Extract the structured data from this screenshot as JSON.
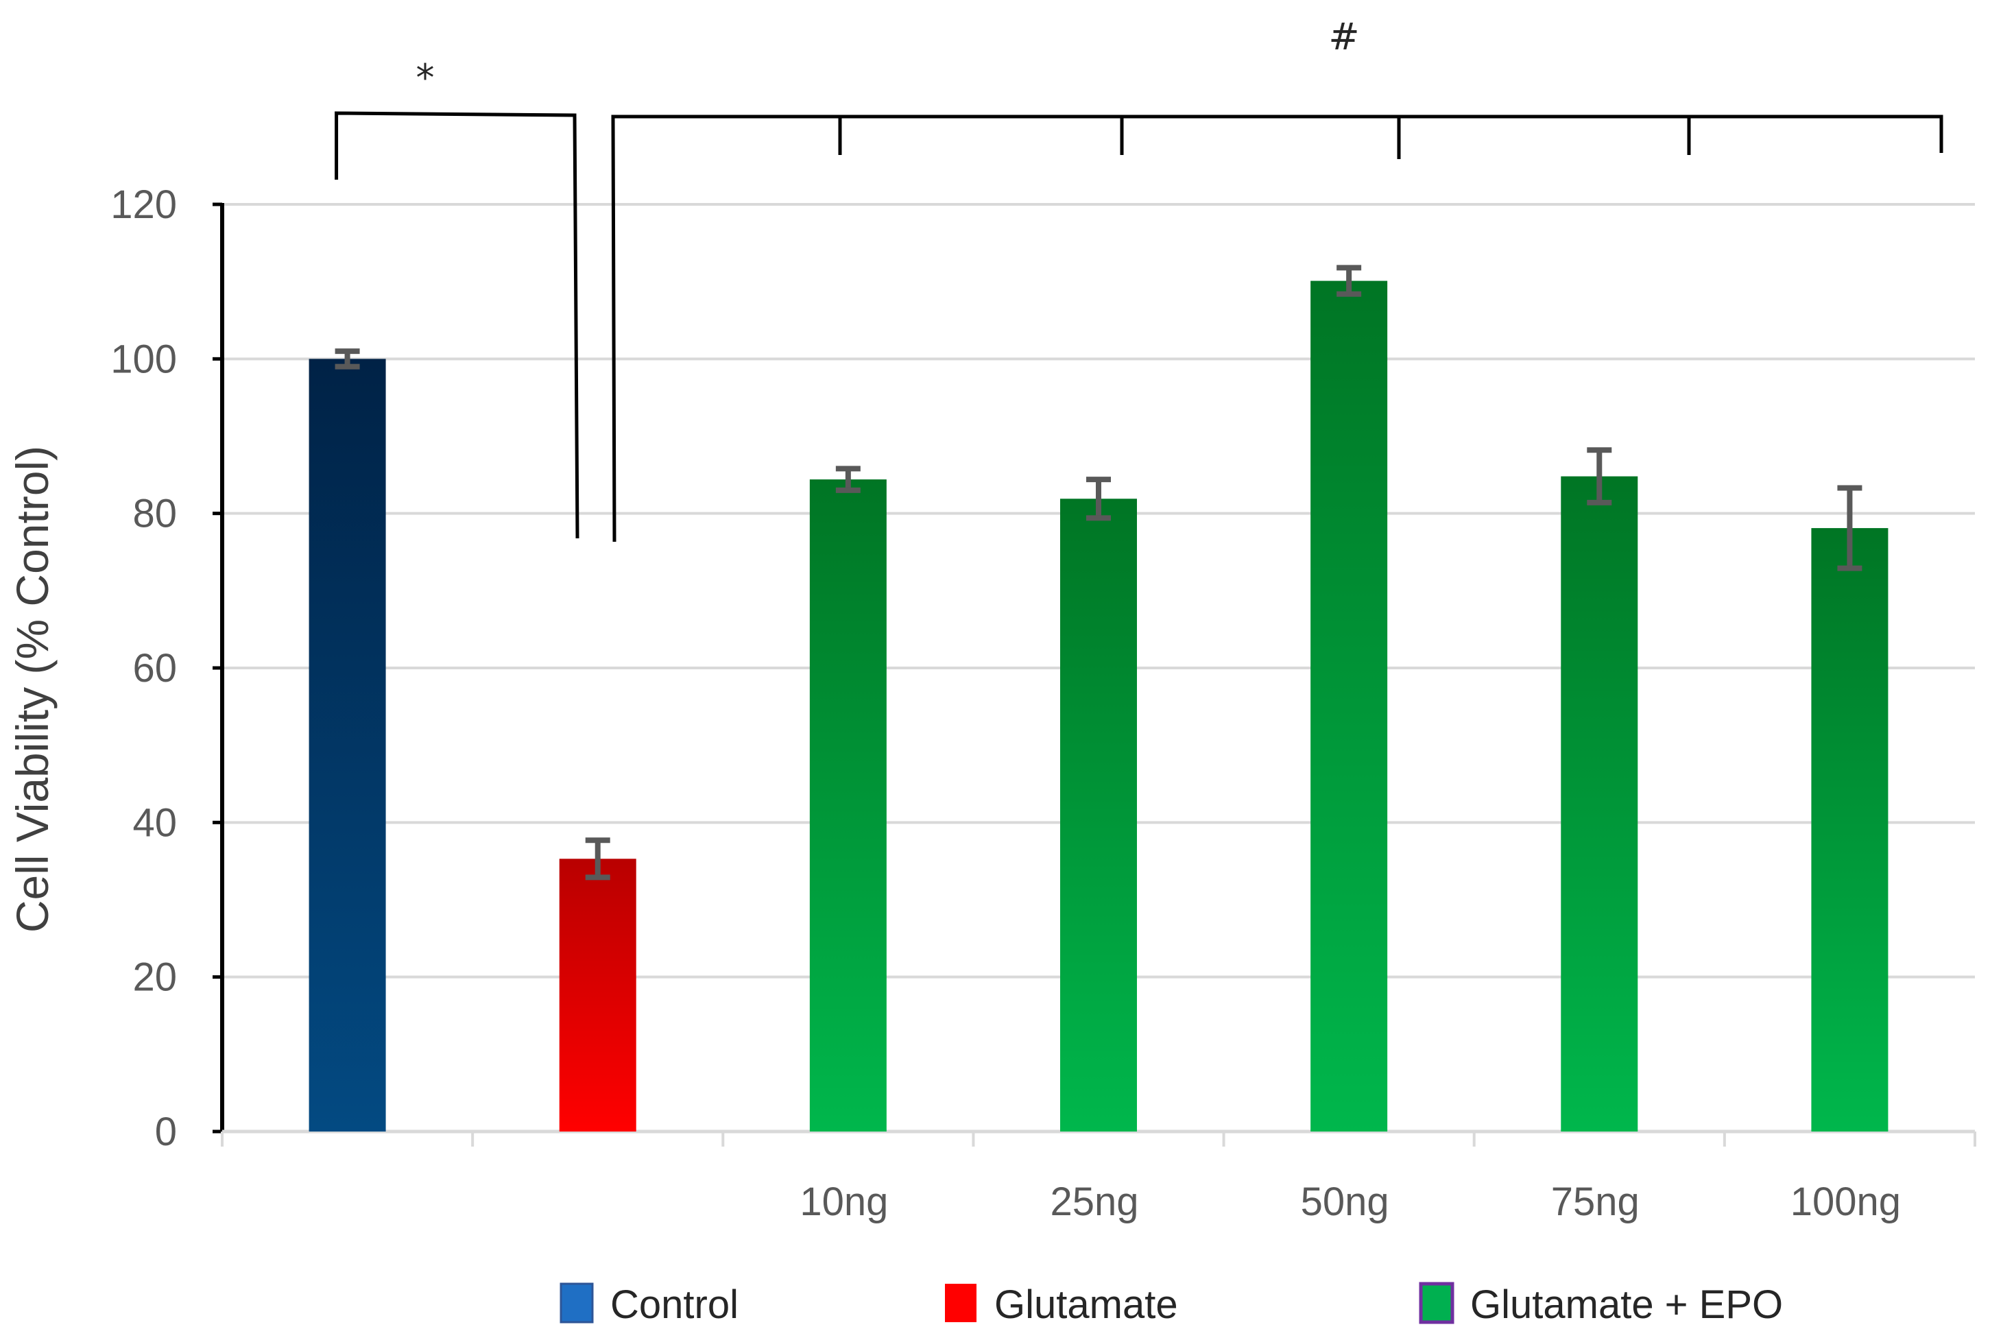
{
  "chart_data": {
    "type": "bar",
    "title": "",
    "xlabel": "",
    "ylabel": "Cell Viability (% Control)",
    "ylim": [
      0,
      120
    ],
    "yticks": [
      0,
      20,
      40,
      60,
      80,
      100,
      120
    ],
    "grid": true,
    "categories": [
      "",
      "",
      "10ng",
      "25ng",
      "50ng",
      "75ng",
      "100ng"
    ],
    "values": [
      100,
      35.3,
      84.4,
      81.9,
      110.1,
      84.8,
      78.1
    ],
    "errors": [
      1,
      2.4,
      1.4,
      2.5,
      1.7,
      3.4,
      5.2
    ],
    "bar_groups": [
      "Control",
      "Glutamate",
      "Glutamate + EPO",
      "Glutamate + EPO",
      "Glutamate + EPO",
      "Glutamate + EPO",
      "Glutamate + EPO"
    ],
    "legend": [
      {
        "label": "Control",
        "color": "#1f6fc4"
      },
      {
        "label": "Glutamate",
        "color": "#ff0000"
      },
      {
        "label": "Glutamate + EPO",
        "color": "#00b050"
      }
    ],
    "legend_position": "bottom",
    "annotations": [
      {
        "label": "*",
        "spans": "Control vs Glutamate"
      },
      {
        "label": "#",
        "spans": "Glutamate vs Glutamate + EPO (10ng–100ng)"
      }
    ],
    "colors": {
      "control_top": "#002246",
      "control_bottom": "#034a82",
      "glutamate_top": "#b90000",
      "glutamate_bottom": "#ff0000",
      "epo_top": "#007524",
      "epo_bottom": "#00b74c",
      "error_bar": "#595959",
      "grid": "#d9d9d9",
      "bracket": "#000000"
    }
  }
}
